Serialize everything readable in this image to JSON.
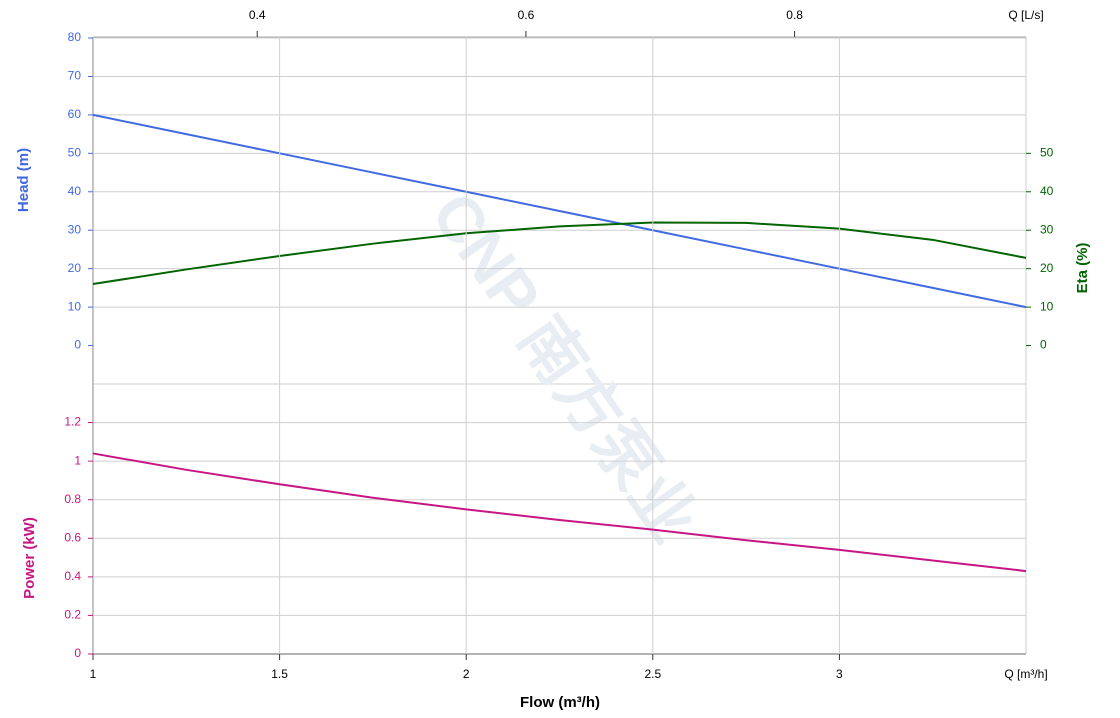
{
  "chart_data": [
    {
      "type": "line",
      "ylabel": "Head (m)",
      "y2label": "Eta (%)",
      "x": [
        1,
        1.25,
        1.5,
        1.75,
        2,
        2.25,
        2.5,
        2.75,
        3,
        3.25,
        3.5
      ],
      "xlim": [
        1,
        3.5
      ],
      "x2label": "Q [L/s]",
      "x2lim": [
        0.27778,
        0.97222
      ],
      "x2ticks": [
        0.4,
        0.6,
        0.8
      ],
      "ylim": [
        -10,
        80
      ],
      "yticks": [
        0,
        10,
        20,
        30,
        40,
        50,
        60,
        70,
        80
      ],
      "y2lim": [
        -10,
        80
      ],
      "y2ticks": [
        0,
        10,
        20,
        30,
        40,
        50
      ],
      "series": [
        {
          "name": "Head",
          "color": "#4169e1",
          "values": [
            60,
            55,
            50,
            45,
            40,
            35,
            30,
            25,
            20,
            15,
            10
          ]
        },
        {
          "name": "Eta",
          "color": "#006400",
          "axis": "y2",
          "values": [
            16,
            19.8,
            23.3,
            26.5,
            29.2,
            31,
            32,
            31.9,
            30.4,
            27.5,
            22.8
          ]
        }
      ],
      "grid": true,
      "watermark": "CNP 南方泵业"
    },
    {
      "type": "line",
      "ylabel": "Power (kW)",
      "xlabel": "Flow (m³/h)",
      "xunit": "Q [m³/h]",
      "x": [
        1,
        1.25,
        1.5,
        1.75,
        2,
        2.25,
        2.5,
        2.75,
        3,
        3.25,
        3.5
      ],
      "xlim": [
        1,
        3.5
      ],
      "xticks": [
        1,
        1.5,
        2,
        2.5,
        3
      ],
      "ylim": [
        0,
        1.4
      ],
      "yticks": [
        0,
        0.2,
        0.4,
        0.6,
        0.8,
        1,
        1.2
      ],
      "series": [
        {
          "name": "Power",
          "color": "#c71585",
          "values": [
            1.04,
            0.955,
            0.88,
            0.81,
            0.75,
            0.695,
            0.645,
            0.59,
            0.54,
            0.485,
            0.43
          ]
        }
      ],
      "grid": true
    }
  ]
}
